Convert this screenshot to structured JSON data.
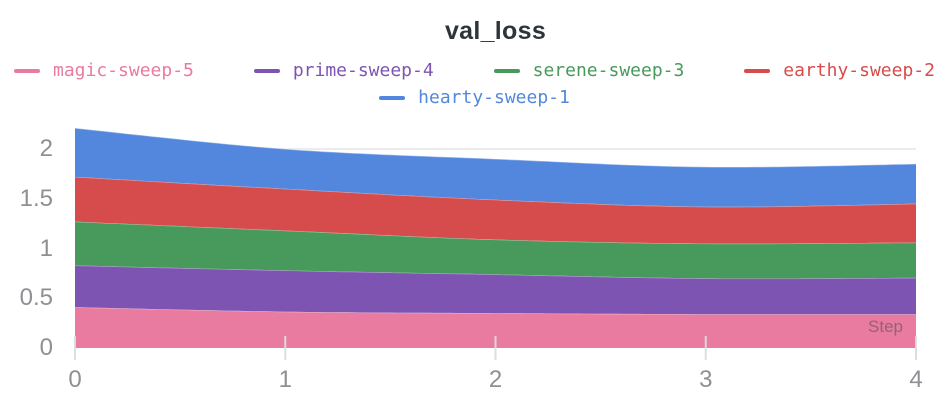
{
  "chart_data": {
    "type": "area",
    "stacked": true,
    "title": "val_loss",
    "xlabel": "Step",
    "x": [
      0,
      1,
      2,
      3,
      4
    ],
    "x_tick_labels": [
      "0",
      "1",
      "2",
      "3",
      "4"
    ],
    "y_tick_labels": [
      "0",
      "0.5",
      "1",
      "1.5",
      "2"
    ],
    "y_tick_values": [
      0,
      0.5,
      1,
      1.5,
      2
    ],
    "xlim": [
      0,
      4
    ],
    "ylim": [
      0,
      2.32
    ],
    "grid_values": [
      2
    ],
    "legend_rows": [
      [
        0,
        1,
        2,
        3
      ],
      [
        4
      ]
    ],
    "series": [
      {
        "name": "magic-sweep-5",
        "color": "#E87B9F",
        "values": [
          0.41,
          0.365,
          0.35,
          0.34,
          0.34
        ]
      },
      {
        "name": "prime-sweep-4",
        "color": "#7D54B2",
        "values": [
          0.42,
          0.415,
          0.39,
          0.36,
          0.365
        ]
      },
      {
        "name": "serene-sweep-3",
        "color": "#479A5B",
        "values": [
          0.44,
          0.4,
          0.35,
          0.35,
          0.355
        ]
      },
      {
        "name": "earthy-sweep-2",
        "color": "#D64C4C",
        "values": [
          0.45,
          0.42,
          0.4,
          0.37,
          0.39
        ]
      },
      {
        "name": "hearty-sweep-1",
        "color": "#5387DD",
        "values": [
          0.49,
          0.4,
          0.41,
          0.4,
          0.4
        ]
      }
    ],
    "colors": {
      "title": "#2f343a",
      "axis_labels": "#8f8f94",
      "gridline": "#ececec",
      "tick_mark": "#dcdcdc",
      "background": "#ffffff"
    }
  }
}
